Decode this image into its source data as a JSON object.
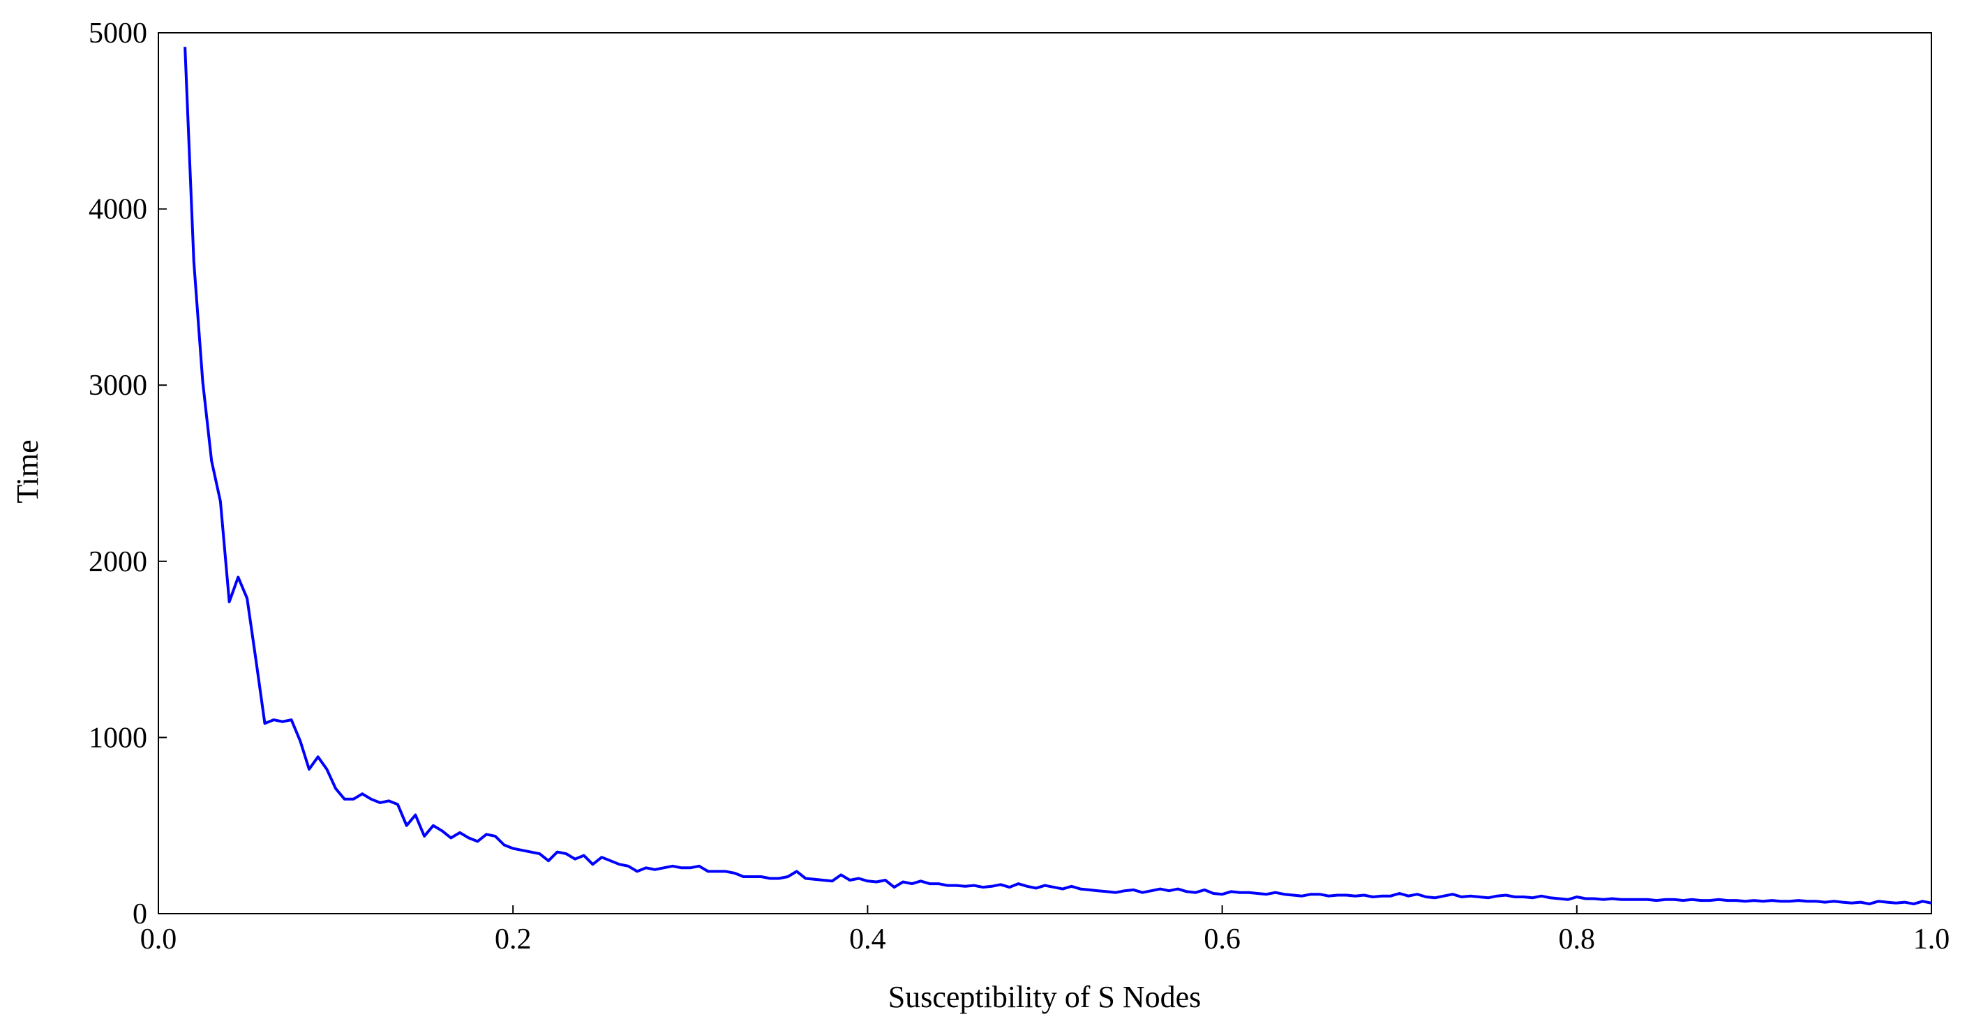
{
  "chart_data": {
    "type": "line",
    "xlabel": "Susceptibility of S Nodes",
    "ylabel": "Time",
    "xlim": [
      0.0,
      1.0
    ],
    "ylim": [
      0,
      5000
    ],
    "x_ticks": [
      "0.0",
      "0.2",
      "0.4",
      "0.6",
      "0.8",
      "1.0"
    ],
    "y_ticks": [
      "0",
      "1000",
      "2000",
      "3000",
      "4000",
      "5000"
    ],
    "grid": false,
    "legend": "none",
    "series": [
      {
        "color": "#0000ff",
        "points": [
          [
            0.015,
            4920
          ],
          [
            0.02,
            3700
          ],
          [
            0.025,
            3020
          ],
          [
            0.03,
            2570
          ],
          [
            0.035,
            2340
          ],
          [
            0.04,
            1770
          ],
          [
            0.045,
            1910
          ],
          [
            0.05,
            1790
          ],
          [
            0.055,
            1440
          ],
          [
            0.06,
            1080
          ],
          [
            0.065,
            1100
          ],
          [
            0.07,
            1090
          ],
          [
            0.075,
            1100
          ],
          [
            0.08,
            980
          ],
          [
            0.085,
            820
          ],
          [
            0.09,
            890
          ],
          [
            0.095,
            820
          ],
          [
            0.1,
            710
          ],
          [
            0.105,
            650
          ],
          [
            0.11,
            650
          ],
          [
            0.115,
            680
          ],
          [
            0.12,
            650
          ],
          [
            0.125,
            630
          ],
          [
            0.13,
            640
          ],
          [
            0.135,
            620
          ],
          [
            0.14,
            500
          ],
          [
            0.145,
            560
          ],
          [
            0.15,
            440
          ],
          [
            0.155,
            500
          ],
          [
            0.16,
            470
          ],
          [
            0.165,
            430
          ],
          [
            0.17,
            460
          ],
          [
            0.175,
            430
          ],
          [
            0.18,
            410
          ],
          [
            0.185,
            450
          ],
          [
            0.19,
            440
          ],
          [
            0.195,
            390
          ],
          [
            0.2,
            370
          ],
          [
            0.205,
            360
          ],
          [
            0.21,
            350
          ],
          [
            0.215,
            340
          ],
          [
            0.22,
            300
          ],
          [
            0.225,
            350
          ],
          [
            0.23,
            340
          ],
          [
            0.235,
            310
          ],
          [
            0.24,
            330
          ],
          [
            0.245,
            280
          ],
          [
            0.25,
            320
          ],
          [
            0.255,
            300
          ],
          [
            0.26,
            280
          ],
          [
            0.265,
            270
          ],
          [
            0.27,
            240
          ],
          [
            0.275,
            260
          ],
          [
            0.28,
            250
          ],
          [
            0.285,
            260
          ],
          [
            0.29,
            270
          ],
          [
            0.295,
            260
          ],
          [
            0.3,
            260
          ],
          [
            0.305,
            270
          ],
          [
            0.31,
            240
          ],
          [
            0.315,
            240
          ],
          [
            0.32,
            240
          ],
          [
            0.325,
            230
          ],
          [
            0.33,
            210
          ],
          [
            0.335,
            210
          ],
          [
            0.34,
            210
          ],
          [
            0.345,
            200
          ],
          [
            0.35,
            200
          ],
          [
            0.355,
            210
          ],
          [
            0.36,
            240
          ],
          [
            0.365,
            200
          ],
          [
            0.37,
            195
          ],
          [
            0.375,
            190
          ],
          [
            0.38,
            185
          ],
          [
            0.385,
            220
          ],
          [
            0.39,
            190
          ],
          [
            0.395,
            200
          ],
          [
            0.4,
            185
          ],
          [
            0.405,
            180
          ],
          [
            0.41,
            190
          ],
          [
            0.415,
            150
          ],
          [
            0.42,
            180
          ],
          [
            0.425,
            170
          ],
          [
            0.43,
            185
          ],
          [
            0.435,
            170
          ],
          [
            0.44,
            170
          ],
          [
            0.445,
            160
          ],
          [
            0.45,
            160
          ],
          [
            0.455,
            155
          ],
          [
            0.46,
            160
          ],
          [
            0.465,
            150
          ],
          [
            0.47,
            155
          ],
          [
            0.475,
            165
          ],
          [
            0.48,
            150
          ],
          [
            0.485,
            170
          ],
          [
            0.49,
            155
          ],
          [
            0.495,
            145
          ],
          [
            0.5,
            160
          ],
          [
            0.505,
            150
          ],
          [
            0.51,
            140
          ],
          [
            0.515,
            155
          ],
          [
            0.52,
            140
          ],
          [
            0.525,
            135
          ],
          [
            0.53,
            130
          ],
          [
            0.535,
            125
          ],
          [
            0.54,
            120
          ],
          [
            0.545,
            130
          ],
          [
            0.55,
            135
          ],
          [
            0.555,
            120
          ],
          [
            0.56,
            130
          ],
          [
            0.565,
            140
          ],
          [
            0.57,
            130
          ],
          [
            0.575,
            140
          ],
          [
            0.58,
            125
          ],
          [
            0.585,
            120
          ],
          [
            0.59,
            135
          ],
          [
            0.595,
            115
          ],
          [
            0.6,
            110
          ],
          [
            0.605,
            125
          ],
          [
            0.61,
            120
          ],
          [
            0.615,
            120
          ],
          [
            0.62,
            115
          ],
          [
            0.625,
            110
          ],
          [
            0.63,
            120
          ],
          [
            0.635,
            110
          ],
          [
            0.64,
            105
          ],
          [
            0.645,
            100
          ],
          [
            0.65,
            110
          ],
          [
            0.655,
            110
          ],
          [
            0.66,
            100
          ],
          [
            0.665,
            105
          ],
          [
            0.67,
            105
          ],
          [
            0.675,
            100
          ],
          [
            0.68,
            105
          ],
          [
            0.685,
            95
          ],
          [
            0.69,
            100
          ],
          [
            0.695,
            100
          ],
          [
            0.7,
            115
          ],
          [
            0.705,
            100
          ],
          [
            0.71,
            110
          ],
          [
            0.715,
            95
          ],
          [
            0.72,
            90
          ],
          [
            0.725,
            100
          ],
          [
            0.73,
            110
          ],
          [
            0.735,
            95
          ],
          [
            0.74,
            100
          ],
          [
            0.745,
            95
          ],
          [
            0.75,
            90
          ],
          [
            0.755,
            100
          ],
          [
            0.76,
            105
          ],
          [
            0.765,
            95
          ],
          [
            0.77,
            95
          ],
          [
            0.775,
            90
          ],
          [
            0.78,
            100
          ],
          [
            0.785,
            90
          ],
          [
            0.79,
            85
          ],
          [
            0.795,
            80
          ],
          [
            0.8,
            95
          ],
          [
            0.805,
            85
          ],
          [
            0.81,
            85
          ],
          [
            0.815,
            80
          ],
          [
            0.82,
            85
          ],
          [
            0.825,
            80
          ],
          [
            0.83,
            80
          ],
          [
            0.835,
            80
          ],
          [
            0.84,
            80
          ],
          [
            0.845,
            75
          ],
          [
            0.85,
            80
          ],
          [
            0.855,
            80
          ],
          [
            0.86,
            75
          ],
          [
            0.865,
            80
          ],
          [
            0.87,
            75
          ],
          [
            0.875,
            75
          ],
          [
            0.88,
            80
          ],
          [
            0.885,
            75
          ],
          [
            0.89,
            75
          ],
          [
            0.895,
            70
          ],
          [
            0.9,
            75
          ],
          [
            0.905,
            70
          ],
          [
            0.91,
            75
          ],
          [
            0.915,
            70
          ],
          [
            0.92,
            70
          ],
          [
            0.925,
            75
          ],
          [
            0.93,
            70
          ],
          [
            0.935,
            70
          ],
          [
            0.94,
            65
          ],
          [
            0.945,
            70
          ],
          [
            0.95,
            65
          ],
          [
            0.955,
            60
          ],
          [
            0.96,
            65
          ],
          [
            0.965,
            55
          ],
          [
            0.97,
            70
          ],
          [
            0.975,
            65
          ],
          [
            0.98,
            60
          ],
          [
            0.985,
            65
          ],
          [
            0.99,
            55
          ],
          [
            0.995,
            70
          ],
          [
            1.0,
            60
          ]
        ]
      }
    ]
  }
}
